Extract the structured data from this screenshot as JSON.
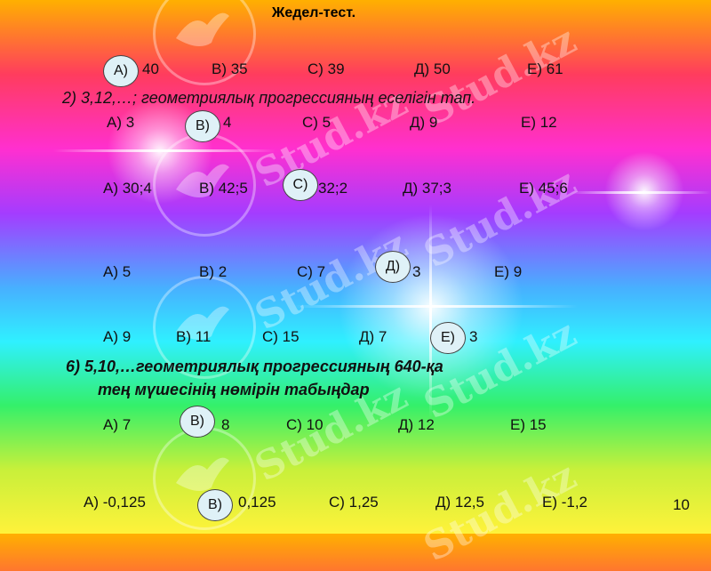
{
  "title": "Жедел-тест.",
  "questions": [
    {
      "options": [
        "40",
        "B) 35",
        "C) 39",
        "Д) 50",
        "E) 61"
      ],
      "answer_mark": "A)"
    },
    {
      "text": "2) 3,12,…; геометриялық прогрессияның еселігін тап.",
      "options": [
        "A) 3",
        "4",
        "C) 5",
        "Д) 9",
        "E) 12"
      ],
      "answer_mark": "B)"
    },
    {
      "options": [
        "A) 30;4",
        "B) 42;5",
        "32;2",
        "Д) 37;3",
        "E) 45;6"
      ],
      "answer_mark": "C)"
    },
    {
      "options": [
        "A) 5",
        "B) 2",
        "C) 7",
        "3",
        "E) 9"
      ],
      "answer_mark": "Д)"
    },
    {
      "options": [
        "A) 9",
        "B) 11",
        "C) 15",
        "Д) 7",
        "3"
      ],
      "answer_mark": "E)"
    },
    {
      "text_line1": "6) 5,10,…геометриялық прогрессияның 640-қа",
      "text_line2": "тең мүшесінің нөмірін табыңдар",
      "options": [
        "A) 7",
        "8",
        "C) 10",
        "Д) 12",
        "E) 15"
      ],
      "answer_mark": "B)"
    },
    {
      "options": [
        "A)  -0,125",
        "0,125",
        "C) 1,25",
        "Д) 12,5",
        "E) -1,2"
      ],
      "answer_mark": "B)"
    }
  ],
  "page_number": "10",
  "watermark": "Stud.kz"
}
